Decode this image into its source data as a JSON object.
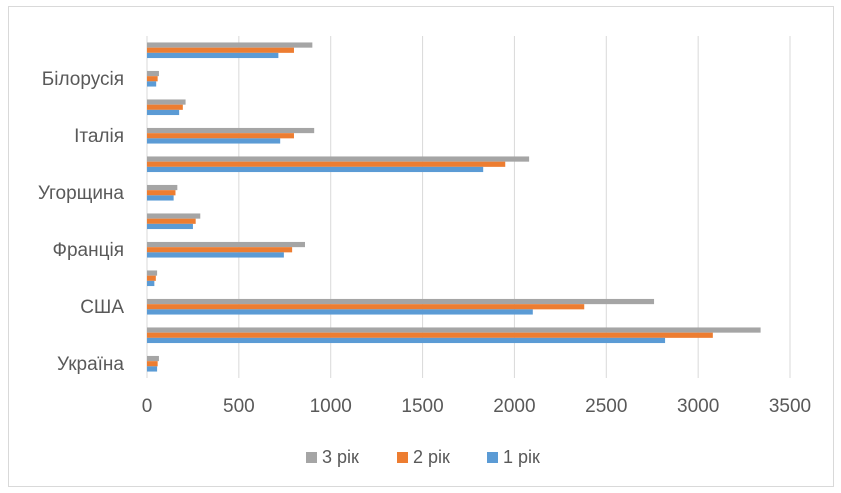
{
  "chart_data": {
    "type": "bar",
    "orientation": "horizontal",
    "categories": [
      "Україна",
      "",
      "США",
      "",
      "Франція",
      "",
      "Угорщина",
      "",
      "Італія",
      "",
      "Білорусія",
      ""
    ],
    "series": [
      {
        "name": "1 рік",
        "color": "#5b9bd5",
        "values": [
          55,
          2820,
          2100,
          40,
          745,
          250,
          145,
          1830,
          725,
          175,
          50,
          715
        ]
      },
      {
        "name": "2 рік",
        "color": "#ed7d31",
        "values": [
          58,
          3080,
          2380,
          48,
          790,
          265,
          155,
          1950,
          800,
          195,
          58,
          800
        ]
      },
      {
        "name": "3 рік",
        "color": "#a5a5a5",
        "values": [
          65,
          3340,
          2760,
          55,
          860,
          290,
          165,
          2080,
          910,
          210,
          65,
          900
        ]
      }
    ],
    "xlim": [
      0,
      3500
    ],
    "xticks": [
      0,
      500,
      1000,
      1500,
      2000,
      2500,
      3000,
      3500
    ],
    "tick_labels": [
      "0",
      "500",
      "1000",
      "1500",
      "2000",
      "2500",
      "3000",
      "3500"
    ],
    "grid": "vertical",
    "legend_position": "bottom",
    "legend_order": [
      "3 рік",
      "2 рік",
      "1 рік"
    ],
    "title": "",
    "xlabel": "",
    "ylabel": ""
  }
}
